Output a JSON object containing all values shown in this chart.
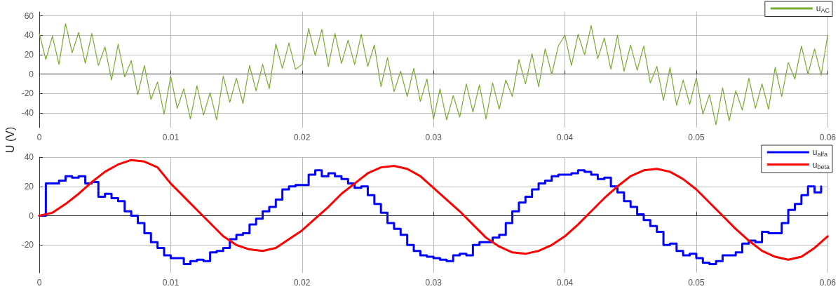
{
  "chart_data": [
    {
      "type": "line",
      "ylabel": "U (V)",
      "xlim": [
        0,
        0.06
      ],
      "xticks": [
        0,
        0.01,
        0.02,
        0.03,
        0.04,
        0.05,
        0.06
      ],
      "ylim": [
        -55,
        64
      ],
      "yticks": [
        -40,
        -20,
        0,
        20,
        40,
        60
      ],
      "grid": true,
      "legend": "top right",
      "marker": "none",
      "line_style": "solid",
      "series": [
        {
          "name": "u$_{AC}$",
          "color": "#77ac30",
          "x": [
            0,
            0.0005,
            0.001,
            0.0015,
            0.002,
            0.0025,
            0.003,
            0.0035,
            0.004,
            0.0045,
            0.005,
            0.0055,
            0.006,
            0.0065,
            0.007,
            0.0075,
            0.008,
            0.0085,
            0.009,
            0.0095,
            0.01,
            0.0105,
            0.011,
            0.0115,
            0.012,
            0.0125,
            0.013,
            0.0135,
            0.014,
            0.0145,
            0.015,
            0.0155,
            0.016,
            0.0165,
            0.017,
            0.0175,
            0.018,
            0.0185,
            0.019,
            0.0195,
            0.02,
            0.0205,
            0.021,
            0.0215,
            0.022,
            0.0225,
            0.023,
            0.0235,
            0.024,
            0.0245,
            0.025,
            0.0255,
            0.026,
            0.0265,
            0.027,
            0.0275,
            0.028,
            0.0285,
            0.029,
            0.0295,
            0.03,
            0.0305,
            0.031,
            0.0315,
            0.032,
            0.0325,
            0.033,
            0.0335,
            0.034,
            0.0345,
            0.035,
            0.0355,
            0.036,
            0.0365,
            0.037,
            0.0375,
            0.038,
            0.0385,
            0.039,
            0.0395,
            0.04,
            0.0405,
            0.041,
            0.0415,
            0.042,
            0.0425,
            0.043,
            0.0435,
            0.044,
            0.0445,
            0.045,
            0.0455,
            0.046,
            0.0465,
            0.047,
            0.0475,
            0.048,
            0.0485,
            0.049,
            0.0495,
            0.05,
            0.0505,
            0.051,
            0.0515,
            0.052,
            0.0525,
            0.053,
            0.0535,
            0.054,
            0.0545,
            0.055,
            0.0555,
            0.056,
            0.0565,
            0.057,
            0.0575,
            0.058,
            0.0585,
            0.059,
            0.0595,
            0.06
          ],
          "values": [
            42,
            15,
            39,
            10,
            52,
            22,
            43,
            11,
            42,
            9,
            28,
            -6,
            31,
            -3,
            14,
            -21,
            9,
            -26,
            -8,
            -41,
            -2,
            -35,
            -15,
            -46,
            -12,
            -42,
            -19,
            -47,
            -2,
            -29,
            -4,
            -30,
            9,
            -17,
            10,
            -15,
            31,
            6,
            32,
            5,
            10,
            47,
            19,
            46,
            8,
            42,
            11,
            35,
            10,
            41,
            8,
            30,
            -13,
            17,
            -18,
            3,
            -23,
            6,
            -28,
            -5,
            -46,
            -15,
            -47,
            -22,
            -44,
            -10,
            -39,
            -11,
            -46,
            -9,
            -36,
            -6,
            -23,
            15,
            -10,
            21,
            -13,
            26,
            0,
            29,
            40,
            9,
            41,
            20,
            50,
            16,
            37,
            5,
            40,
            3,
            30,
            4,
            29,
            -9,
            8,
            -27,
            7,
            -32,
            -6,
            -31,
            -4,
            -41,
            -21,
            -52,
            -14,
            -48,
            -17,
            -37,
            -4,
            -35,
            -10,
            -36,
            7,
            -23,
            12,
            -5,
            29,
            0,
            26,
            -1,
            40
          ]
        }
      ]
    },
    {
      "type": "line",
      "xlim": [
        0,
        0.06
      ],
      "xticks": [
        0,
        0.01,
        0.02,
        0.03,
        0.04,
        0.05,
        0.06
      ],
      "ylim": [
        -39,
        40
      ],
      "yticks": [
        -20,
        0,
        20,
        40
      ],
      "grid": true,
      "legend": "top right",
      "marker": "none",
      "line_style": "solid",
      "series": [
        {
          "name": "u$_{alfa}$",
          "type": "step",
          "color": "#0000ff",
          "x": [
            0,
            0.0005,
            0.001,
            0.0015,
            0.002,
            0.0025,
            0.003,
            0.0035,
            0.004,
            0.0045,
            0.005,
            0.0055,
            0.006,
            0.0065,
            0.007,
            0.0075,
            0.008,
            0.0085,
            0.009,
            0.0095,
            0.01,
            0.0105,
            0.011,
            0.0115,
            0.012,
            0.0125,
            0.013,
            0.0135,
            0.014,
            0.0145,
            0.015,
            0.0155,
            0.016,
            0.0165,
            0.017,
            0.0175,
            0.018,
            0.0185,
            0.019,
            0.0195,
            0.02,
            0.0205,
            0.021,
            0.0215,
            0.022,
            0.0225,
            0.023,
            0.0235,
            0.024,
            0.0245,
            0.025,
            0.0255,
            0.026,
            0.0265,
            0.027,
            0.0275,
            0.028,
            0.0285,
            0.029,
            0.0295,
            0.03,
            0.0305,
            0.031,
            0.0315,
            0.032,
            0.0325,
            0.033,
            0.0335,
            0.034,
            0.0345,
            0.035,
            0.0355,
            0.036,
            0.0365,
            0.037,
            0.0375,
            0.038,
            0.0385,
            0.039,
            0.0395,
            0.04,
            0.0405,
            0.041,
            0.0415,
            0.042,
            0.0425,
            0.043,
            0.0435,
            0.044,
            0.0445,
            0.045,
            0.0455,
            0.046,
            0.0465,
            0.047,
            0.0475,
            0.048,
            0.0485,
            0.049,
            0.0495,
            0.05,
            0.0505,
            0.051,
            0.0515,
            0.052,
            0.0525,
            0.053,
            0.0535,
            0.054,
            0.0545,
            0.055,
            0.0555,
            0.056,
            0.0565,
            0.057,
            0.0575,
            0.058,
            0.0585,
            0.059,
            0.0595
          ],
          "values": [
            0,
            22,
            22,
            24,
            27,
            26,
            27,
            22,
            23,
            13,
            15,
            12,
            10,
            3,
            0,
            -5,
            -12,
            -18,
            -22,
            -27,
            -29,
            -29,
            -33,
            -31,
            -30,
            -31,
            -25,
            -24,
            -22,
            -16,
            -13,
            -12,
            -6,
            -2,
            3,
            6,
            11,
            18,
            20,
            21,
            21,
            28,
            31,
            27,
            29,
            27,
            25,
            22,
            19,
            20,
            14,
            8,
            2,
            -5,
            -9,
            -13,
            -20,
            -24,
            -27,
            -28,
            -29,
            -30,
            -31,
            -27,
            -26,
            -27,
            -20,
            -18,
            -18,
            -15,
            -13,
            -5,
            3,
            9,
            13,
            18,
            22,
            24,
            27,
            28,
            28,
            29,
            31,
            30,
            28,
            25,
            26,
            20,
            16,
            10,
            6,
            1,
            -3,
            -7,
            -11,
            -20,
            -19,
            -24,
            -27,
            -26,
            -29,
            -32,
            -33,
            -31,
            -27,
            -27,
            -25,
            -19,
            -17,
            -18,
            -11,
            -12,
            -12,
            -5,
            4,
            8,
            14,
            20,
            16,
            20
          ]
        },
        {
          "name": "u$_{beta}$",
          "color": "#ff0000",
          "x": [
            0,
            0.001,
            0.002,
            0.003,
            0.004,
            0.005,
            0.006,
            0.007,
            0.008,
            0.009,
            0.01,
            0.011,
            0.012,
            0.013,
            0.014,
            0.015,
            0.016,
            0.017,
            0.018,
            0.019,
            0.02,
            0.021,
            0.022,
            0.023,
            0.024,
            0.025,
            0.026,
            0.027,
            0.028,
            0.029,
            0.03,
            0.031,
            0.032,
            0.033,
            0.034,
            0.035,
            0.036,
            0.037,
            0.038,
            0.039,
            0.04,
            0.041,
            0.042,
            0.043,
            0.044,
            0.045,
            0.046,
            0.047,
            0.048,
            0.049,
            0.05,
            0.051,
            0.052,
            0.053,
            0.054,
            0.055,
            0.056,
            0.057,
            0.058,
            0.059,
            0.06
          ],
          "values": [
            0,
            2,
            8,
            15,
            23,
            30,
            35,
            38,
            37,
            33,
            22,
            13,
            4,
            -5,
            -14,
            -20,
            -23,
            -24,
            -22,
            -16,
            -10,
            -2,
            6,
            15,
            22,
            29,
            33,
            34,
            32,
            27,
            19,
            11,
            3,
            -6,
            -15,
            -21,
            -25,
            -26,
            -24,
            -20,
            -14,
            -6,
            3,
            12,
            20,
            27,
            31,
            32,
            30,
            25,
            18,
            9,
            0,
            -9,
            -17,
            -24,
            -28,
            -30,
            -28,
            -22,
            -14
          ]
        }
      ]
    }
  ]
}
